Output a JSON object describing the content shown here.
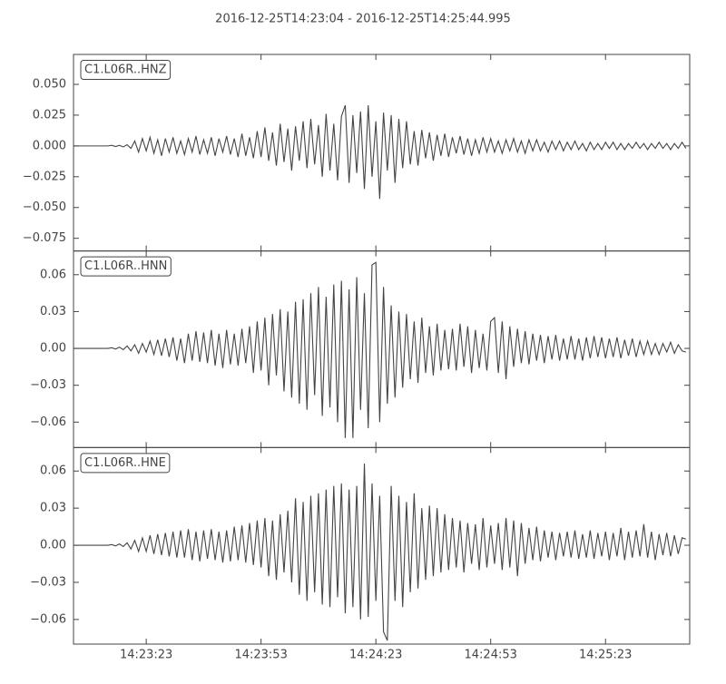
{
  "chart_data": [
    {
      "type": "line",
      "title": "2016-12-25T14:23:04  -  2016-12-25T14:25:44.995",
      "label": "C1.L06R..HNZ",
      "color": "#444444",
      "x": [
        0,
        1,
        2,
        3,
        4,
        5,
        6,
        7,
        8,
        9,
        10,
        11,
        12,
        13,
        14,
        15,
        16,
        17,
        18,
        19,
        20,
        21,
        22,
        23,
        24,
        25,
        26,
        27,
        28,
        29,
        30,
        31,
        32,
        33,
        34,
        35,
        36,
        37,
        38,
        39,
        40,
        41,
        42,
        43,
        44,
        45,
        46,
        47,
        48,
        49,
        50,
        51,
        52,
        53,
        54,
        55,
        56,
        57,
        58,
        59,
        60,
        61,
        62,
        63,
        64,
        65,
        66,
        67,
        68,
        69,
        70,
        71,
        72,
        73,
        74,
        75,
        76,
        77,
        78,
        79,
        80,
        81,
        82,
        83,
        84,
        85,
        86,
        87,
        88,
        89,
        90,
        91,
        92,
        93,
        94,
        95,
        96,
        97,
        98,
        99,
        100,
        101,
        102,
        103,
        104,
        105,
        106,
        107,
        108,
        109,
        110,
        111,
        112,
        113,
        114,
        115,
        116,
        117,
        118,
        119,
        120,
        121,
        122,
        123,
        124,
        125,
        126,
        127,
        128,
        129,
        130,
        131,
        132,
        133,
        134,
        135,
        136,
        137,
        138,
        139,
        140,
        141,
        142,
        143,
        144,
        145,
        146,
        147,
        148,
        149,
        150,
        151,
        152,
        153,
        154,
        155,
        156,
        157,
        158,
        159,
        160
      ],
      "values": [
        0,
        0,
        0,
        0,
        0,
        0,
        0,
        0,
        0,
        0,
        0.0005,
        -0.0005,
        0.0005,
        -0.0008,
        0.001,
        -0.002,
        0.004,
        -0.005,
        0.006,
        -0.004,
        0.007,
        -0.006,
        0.005,
        -0.008,
        0.006,
        -0.005,
        0.007,
        -0.006,
        0.004,
        -0.007,
        0.006,
        -0.005,
        0.008,
        -0.007,
        0.005,
        -0.006,
        0.007,
        -0.008,
        0.006,
        -0.005,
        0.008,
        -0.007,
        0.006,
        -0.009,
        0.01,
        -0.008,
        0.007,
        -0.01,
        0.012,
        -0.009,
        0.015,
        -0.012,
        0.011,
        -0.016,
        0.018,
        -0.013,
        0.014,
        -0.02,
        0.016,
        -0.012,
        0.02,
        -0.018,
        0.022,
        -0.015,
        0.017,
        -0.025,
        0.026,
        -0.02,
        0.018,
        -0.028,
        0.024,
        0.033,
        -0.03,
        0.025,
        -0.022,
        0.028,
        -0.035,
        0.033,
        -0.025,
        0.02,
        -0.043,
        0.027,
        -0.02,
        0.025,
        -0.03,
        0.022,
        -0.018,
        0.02,
        -0.015,
        0.012,
        -0.016,
        0.013,
        -0.01,
        0.011,
        -0.012,
        0.009,
        -0.008,
        0.01,
        -0.009,
        0.007,
        -0.006,
        0.008,
        -0.007,
        0.006,
        -0.008,
        0.005,
        -0.006,
        0.007,
        -0.005,
        0.006,
        -0.005,
        0.004,
        -0.006,
        0.005,
        -0.004,
        0.006,
        -0.005,
        0.004,
        -0.006,
        0.005,
        -0.004,
        0.005,
        -0.004,
        0.003,
        -0.005,
        0.004,
        -0.003,
        0.004,
        -0.004,
        0.003,
        -0.003,
        0.004,
        -0.003,
        0.002,
        -0.004,
        0.003,
        -0.003,
        0.002,
        -0.003,
        0.003,
        -0.002,
        0.003,
        -0.003,
        0.002,
        -0.003,
        0.002,
        -0.002,
        0.003,
        -0.002,
        0.002,
        -0.003,
        0.002,
        -0.002,
        0.003,
        -0.002,
        0.002,
        -0.003,
        0.002,
        -0.002,
        0.003,
        -0.002
      ],
      "xlim": [
        0,
        160.995
      ],
      "ylim": [
        -0.0853,
        0.0743
      ],
      "yticks": [
        {
          "value": 0.05,
          "label": "0.050"
        },
        {
          "value": 0.025,
          "label": "0.025"
        },
        {
          "value": 0,
          "label": "0.000"
        },
        {
          "value": -0.025,
          "label": "−0.025"
        },
        {
          "value": -0.05,
          "label": "−0.050"
        },
        {
          "value": -0.075,
          "label": "−0.075"
        }
      ]
    },
    {
      "type": "line",
      "label": "C1.L06R..HNN",
      "color": "#444444",
      "x": [
        0,
        1,
        2,
        3,
        4,
        5,
        6,
        7,
        8,
        9,
        10,
        11,
        12,
        13,
        14,
        15,
        16,
        17,
        18,
        19,
        20,
        21,
        22,
        23,
        24,
        25,
        26,
        27,
        28,
        29,
        30,
        31,
        32,
        33,
        34,
        35,
        36,
        37,
        38,
        39,
        40,
        41,
        42,
        43,
        44,
        45,
        46,
        47,
        48,
        49,
        50,
        51,
        52,
        53,
        54,
        55,
        56,
        57,
        58,
        59,
        60,
        61,
        62,
        63,
        64,
        65,
        66,
        67,
        68,
        69,
        70,
        71,
        72,
        73,
        74,
        75,
        76,
        77,
        78,
        79,
        80,
        81,
        82,
        83,
        84,
        85,
        86,
        87,
        88,
        89,
        90,
        91,
        92,
        93,
        94,
        95,
        96,
        97,
        98,
        99,
        100,
        101,
        102,
        103,
        104,
        105,
        106,
        107,
        108,
        109,
        110,
        111,
        112,
        113,
        114,
        115,
        116,
        117,
        118,
        119,
        120,
        121,
        122,
        123,
        124,
        125,
        126,
        127,
        128,
        129,
        130,
        131,
        132,
        133,
        134,
        135,
        136,
        137,
        138,
        139,
        140,
        141,
        142,
        143,
        144,
        145,
        146,
        147,
        148,
        149,
        150,
        151,
        152,
        153,
        154,
        155,
        156,
        157,
        158,
        159,
        160
      ],
      "values": [
        0,
        0,
        0,
        0,
        0,
        0,
        0,
        0,
        0,
        0,
        0.0005,
        -0.0005,
        0.001,
        -0.001,
        0.002,
        -0.002,
        0.003,
        -0.004,
        0.004,
        -0.003,
        0.006,
        -0.005,
        0.007,
        -0.006,
        0.008,
        -0.007,
        0.009,
        -0.01,
        0.008,
        -0.012,
        0.012,
        -0.01,
        0.014,
        -0.011,
        0.013,
        -0.012,
        0.015,
        -0.014,
        0.012,
        -0.016,
        0.015,
        -0.013,
        0.012,
        -0.014,
        0.016,
        -0.012,
        0.018,
        -0.02,
        0.022,
        -0.018,
        0.025,
        -0.03,
        0.028,
        -0.022,
        0.032,
        -0.035,
        0.03,
        -0.04,
        0.038,
        -0.045,
        0.04,
        -0.05,
        0.045,
        -0.038,
        0.05,
        -0.055,
        0.042,
        -0.048,
        0.052,
        -0.06,
        0.055,
        -0.073,
        0.048,
        -0.073,
        0.058,
        -0.05,
        0.045,
        -0.065,
        0.068,
        0.07,
        -0.06,
        0.05,
        -0.045,
        0.035,
        -0.04,
        0.03,
        -0.032,
        0.028,
        -0.025,
        0.022,
        -0.028,
        0.025,
        -0.02,
        0.018,
        -0.022,
        0.02,
        -0.018,
        0.015,
        -0.017,
        0.016,
        -0.018,
        0.02,
        -0.015,
        0.018,
        -0.02,
        0.015,
        -0.016,
        0.012,
        -0.018,
        0.022,
        0.025,
        -0.02,
        0.022,
        -0.025,
        0.018,
        -0.015,
        0.016,
        -0.012,
        0.014,
        -0.013,
        0.012,
        -0.01,
        0.011,
        -0.012,
        0.01,
        -0.009,
        0.011,
        -0.01,
        0.008,
        -0.009,
        0.01,
        -0.009,
        0.008,
        -0.01,
        0.009,
        -0.008,
        0.01,
        -0.007,
        0.009,
        -0.008,
        0.008,
        -0.007,
        0.009,
        -0.008,
        0.007,
        -0.006,
        0.008,
        -0.007,
        0.006,
        -0.005,
        0.006,
        -0.005,
        0.004,
        -0.005,
        0.004,
        -0.003,
        0.005,
        -0.004,
        0.003,
        -0.002,
        -0.003
      ],
      "xlim": [
        0,
        160.995
      ],
      "ylim": [
        -0.0807,
        0.0793
      ],
      "yticks": [
        {
          "value": 0.06,
          "label": "0.06"
        },
        {
          "value": 0.03,
          "label": "0.03"
        },
        {
          "value": 0,
          "label": "0.00"
        },
        {
          "value": -0.03,
          "label": "−0.03"
        },
        {
          "value": -0.06,
          "label": "−0.06"
        }
      ]
    },
    {
      "type": "line",
      "label": "C1.L06R..HNE",
      "color": "#444444",
      "x": [
        0,
        1,
        2,
        3,
        4,
        5,
        6,
        7,
        8,
        9,
        10,
        11,
        12,
        13,
        14,
        15,
        16,
        17,
        18,
        19,
        20,
        21,
        22,
        23,
        24,
        25,
        26,
        27,
        28,
        29,
        30,
        31,
        32,
        33,
        34,
        35,
        36,
        37,
        38,
        39,
        40,
        41,
        42,
        43,
        44,
        45,
        46,
        47,
        48,
        49,
        50,
        51,
        52,
        53,
        54,
        55,
        56,
        57,
        58,
        59,
        60,
        61,
        62,
        63,
        64,
        65,
        66,
        67,
        68,
        69,
        70,
        71,
        72,
        73,
        74,
        75,
        76,
        77,
        78,
        79,
        80,
        81,
        82,
        83,
        84,
        85,
        86,
        87,
        88,
        89,
        90,
        91,
        92,
        93,
        94,
        95,
        96,
        97,
        98,
        99,
        100,
        101,
        102,
        103,
        104,
        105,
        106,
        107,
        108,
        109,
        110,
        111,
        112,
        113,
        114,
        115,
        116,
        117,
        118,
        119,
        120,
        121,
        122,
        123,
        124,
        125,
        126,
        127,
        128,
        129,
        130,
        131,
        132,
        133,
        134,
        135,
        136,
        137,
        138,
        139,
        140,
        141,
        142,
        143,
        144,
        145,
        146,
        147,
        148,
        149,
        150,
        151,
        152,
        153,
        154,
        155,
        156,
        157,
        158,
        159,
        160
      ],
      "values": [
        0,
        0,
        0,
        0,
        0,
        0,
        0,
        0,
        0,
        0,
        0.0005,
        -0.0005,
        0.001,
        -0.001,
        0.002,
        -0.003,
        0.004,
        -0.005,
        0.006,
        -0.005,
        0.008,
        -0.007,
        0.009,
        -0.008,
        0.01,
        -0.009,
        0.011,
        -0.01,
        0.012,
        -0.01,
        0.013,
        -0.012,
        0.011,
        -0.013,
        0.012,
        -0.011,
        0.013,
        -0.012,
        0.011,
        -0.014,
        0.012,
        -0.013,
        0.015,
        -0.012,
        0.016,
        -0.014,
        0.018,
        -0.016,
        0.02,
        -0.018,
        0.022,
        -0.025,
        0.02,
        -0.028,
        0.025,
        -0.022,
        0.028,
        -0.03,
        0.038,
        -0.04,
        0.035,
        -0.045,
        0.04,
        -0.038,
        0.042,
        -0.048,
        0.045,
        -0.05,
        0.048,
        -0.042,
        0.05,
        -0.055,
        0.045,
        -0.05,
        0.048,
        -0.06,
        0.066,
        -0.058,
        0.05,
        -0.045,
        0.04,
        -0.07,
        -0.077,
        0.048,
        -0.045,
        0.04,
        -0.05,
        0.035,
        -0.038,
        0.042,
        -0.035,
        0.03,
        -0.028,
        0.032,
        -0.025,
        0.03,
        -0.022,
        0.025,
        -0.02,
        0.022,
        -0.018,
        0.02,
        -0.022,
        0.018,
        -0.015,
        0.017,
        -0.02,
        0.022,
        -0.018,
        0.016,
        -0.015,
        0.018,
        -0.02,
        0.022,
        -0.018,
        0.02,
        -0.025,
        0.018,
        -0.015,
        0.014,
        -0.012,
        0.015,
        -0.013,
        0.012,
        -0.01,
        0.011,
        -0.012,
        0.01,
        -0.009,
        0.011,
        -0.01,
        0.012,
        -0.011,
        0.009,
        -0.01,
        0.012,
        -0.011,
        0.01,
        -0.009,
        0.011,
        -0.012,
        0.01,
        -0.009,
        0.014,
        -0.012,
        0.011,
        -0.01,
        0.012,
        -0.009,
        0.017,
        -0.01,
        0.011,
        -0.012,
        0.009,
        -0.008,
        0.01,
        -0.009,
        0.008,
        -0.007,
        0.006,
        0.005
      ],
      "xlim": [
        0,
        160.995
      ],
      "ylim": [
        -0.0799,
        0.079
      ],
      "yticks": [
        {
          "value": 0.06,
          "label": "0.06"
        },
        {
          "value": 0.03,
          "label": "0.03"
        },
        {
          "value": 0,
          "label": "0.00"
        },
        {
          "value": -0.03,
          "label": "−0.03"
        },
        {
          "value": -0.06,
          "label": "−0.06"
        }
      ],
      "xticks": [
        {
          "value": 19,
          "label": "14:23:23"
        },
        {
          "value": 49,
          "label": "14:23:53"
        },
        {
          "value": 79,
          "label": "14:24:23"
        },
        {
          "value": 109,
          "label": "14:24:53"
        },
        {
          "value": 139,
          "label": "14:25:23"
        }
      ]
    }
  ]
}
